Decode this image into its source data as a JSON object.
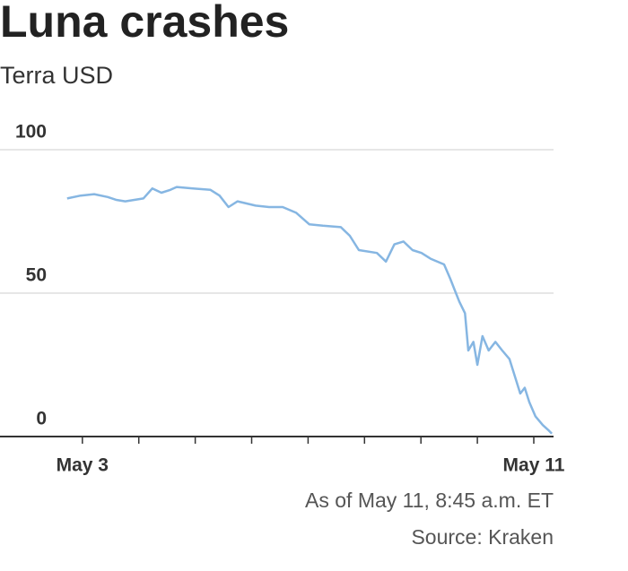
{
  "chart_data": {
    "type": "line",
    "title": "Luna crashes",
    "subtitle": "Terra USD",
    "notes": [
      "As of May 11, 8:45 a.m. ET",
      "Source: Kraken"
    ],
    "x": [
      2.73,
      2.97,
      3.21,
      3.45,
      3.6,
      3.76,
      4.08,
      4.24,
      4.4,
      4.56,
      4.67,
      4.96,
      5.27,
      5.43,
      5.59,
      5.75,
      6.07,
      6.31,
      6.55,
      6.79,
      7.02,
      7.26,
      7.58,
      7.74,
      7.9,
      8.22,
      8.38,
      8.53,
      8.69,
      8.85,
      9.01,
      9.17,
      9.41,
      9.52,
      9.62,
      9.68,
      9.78,
      9.84,
      9.93,
      10.0,
      10.09,
      10.2,
      10.32,
      10.44,
      10.57,
      10.68,
      10.76,
      10.84,
      10.92,
      11.03,
      11.16,
      11.27,
      11.32
    ],
    "series": [
      {
        "name": "Terra USD",
        "color": "#86b6e2",
        "values": [
          83,
          84,
          84.5,
          83.5,
          82.5,
          82,
          83,
          86.5,
          85,
          86,
          87,
          86.5,
          86,
          84,
          80,
          82,
          80.5,
          80,
          80,
          78,
          74,
          73.5,
          73,
          70,
          65,
          64,
          61,
          67,
          68,
          65,
          64,
          62,
          60,
          55,
          50,
          47,
          43,
          30,
          33,
          25,
          35,
          30,
          33,
          30,
          27,
          20,
          15,
          17,
          12,
          7,
          4,
          2,
          1
        ]
      }
    ],
    "xlim": [
      1.54,
      11.35
    ],
    "xticks": [
      {
        "value": 3,
        "label": "May 3"
      },
      {
        "value": 4,
        "label": null
      },
      {
        "value": 5,
        "label": null
      },
      {
        "value": 6,
        "label": null
      },
      {
        "value": 7,
        "label": null
      },
      {
        "value": 8,
        "label": null
      },
      {
        "value": 9,
        "label": null
      },
      {
        "value": 10,
        "label": null
      },
      {
        "value": 11,
        "label": "May 11"
      }
    ],
    "ylim": [
      0,
      100
    ],
    "yticks": [
      0,
      50,
      100
    ],
    "grid": true
  }
}
